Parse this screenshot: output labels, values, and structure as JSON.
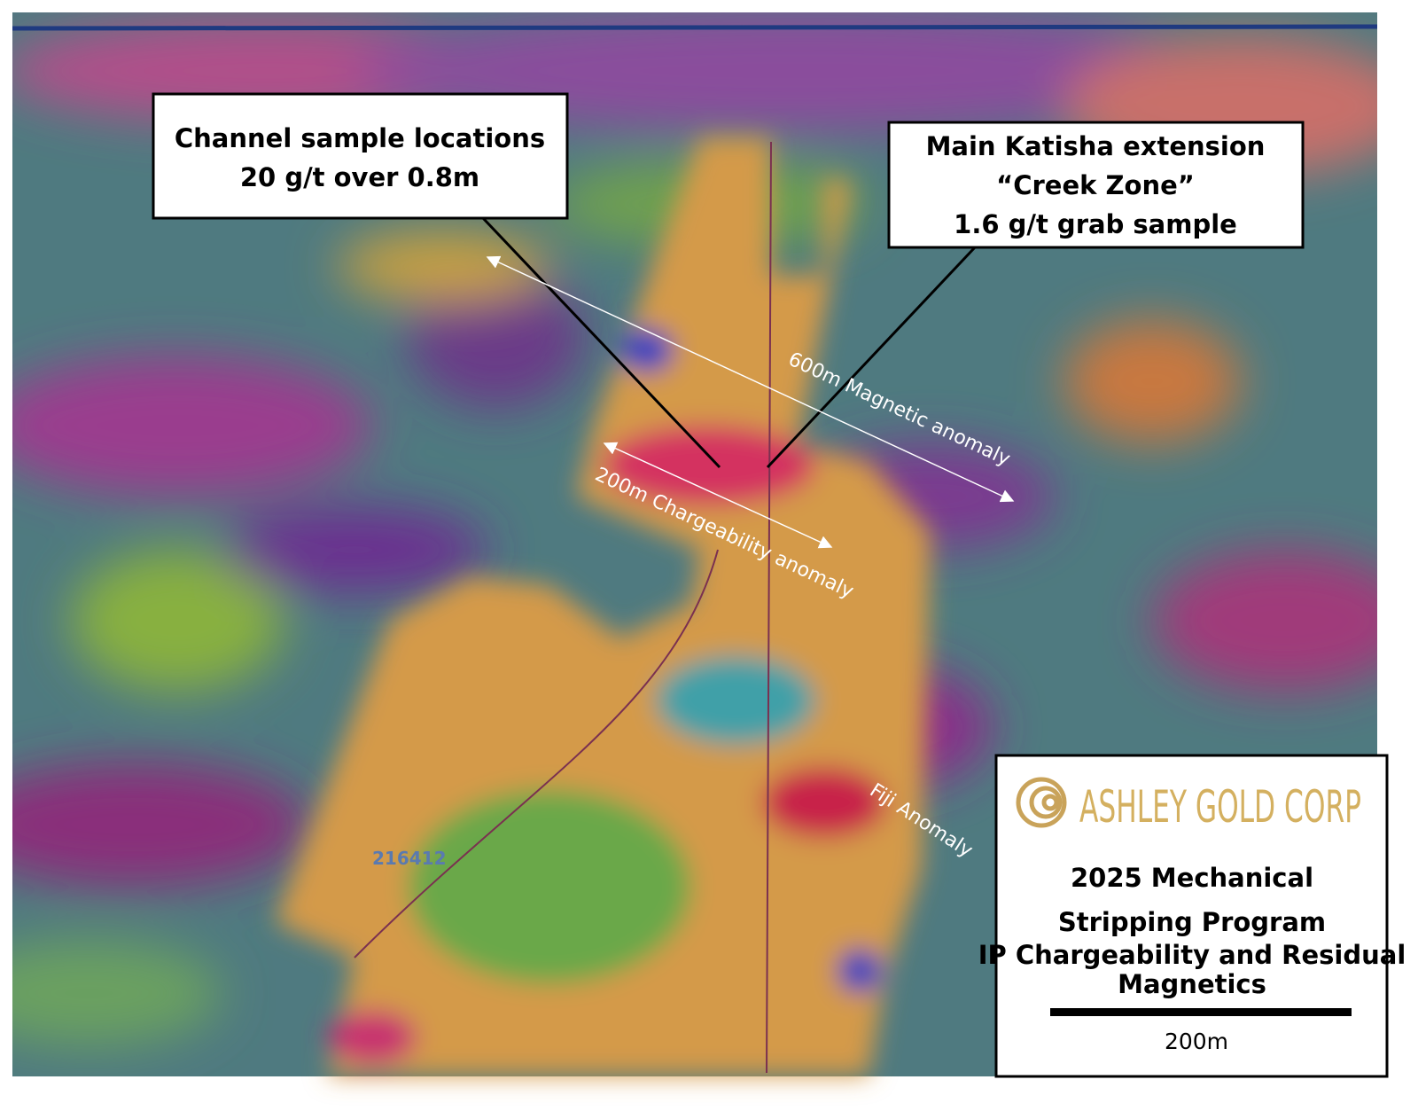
{
  "callouts": [
    {
      "lines": [
        "Channel sample locations",
        "20 g/t over 0.8m"
      ]
    },
    {
      "lines": [
        "Main Katisha extension",
        "“Creek Zone”",
        "1.6 g/t grab sample"
      ]
    }
  ],
  "annotations": {
    "magnetic": "600m Magnetic anomaly",
    "chargeability": "200m Chargeability anomaly",
    "fiji": "Fiji Anomaly",
    "claim": "216412"
  },
  "legend": {
    "company": "ASHLEY GOLD CORP",
    "title": [
      "2025 Mechanical",
      "Stripping Program"
    ],
    "subtitle": [
      "IP Chargeability and Residual",
      "Magnetics"
    ],
    "scale": "200m"
  }
}
